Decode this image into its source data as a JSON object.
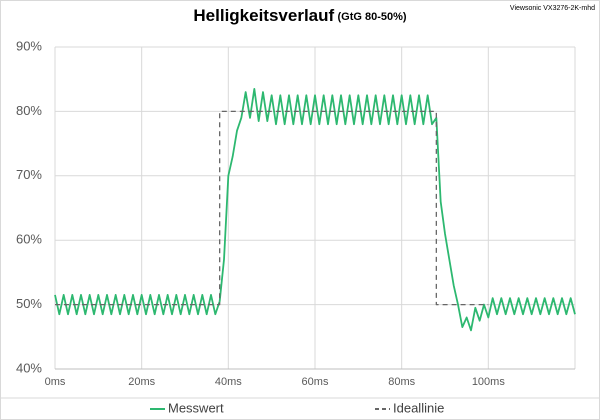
{
  "chart_data": {
    "type": "line",
    "title": "Helligkeitsverlauf",
    "subtitle": "(GtG 80-50%)",
    "annotation": "Viewsonic VX3276-2K-mhd",
    "xlim": [
      0,
      120
    ],
    "ylim": [
      40,
      90
    ],
    "xticks": [
      {
        "value": 0,
        "label": "0ms"
      },
      {
        "value": 20,
        "label": "20ms"
      },
      {
        "value": 40,
        "label": "40ms"
      },
      {
        "value": 60,
        "label": "60ms"
      },
      {
        "value": 80,
        "label": "80ms"
      },
      {
        "value": 100,
        "label": "100ms"
      }
    ],
    "yticks": [
      {
        "value": 40,
        "label": "40%"
      },
      {
        "value": 50,
        "label": "50%"
      },
      {
        "value": 60,
        "label": "60%"
      },
      {
        "value": 70,
        "label": "70%"
      },
      {
        "value": 80,
        "label": "80%"
      },
      {
        "value": 90,
        "label": "90%"
      }
    ],
    "grid": true,
    "legend": "bottom",
    "series": [
      {
        "name": "Messwert",
        "color": "#2db870",
        "style": "solid",
        "x": [
          0,
          1,
          2,
          3,
          4,
          5,
          6,
          7,
          8,
          9,
          10,
          11,
          12,
          13,
          14,
          15,
          16,
          17,
          18,
          19,
          20,
          21,
          22,
          23,
          24,
          25,
          26,
          27,
          28,
          29,
          30,
          31,
          32,
          33,
          34,
          35,
          36,
          37,
          38,
          39,
          40,
          41,
          42,
          43,
          44,
          45,
          46,
          47,
          48,
          49,
          50,
          51,
          52,
          53,
          54,
          55,
          56,
          57,
          58,
          59,
          60,
          61,
          62,
          63,
          64,
          65,
          66,
          67,
          68,
          69,
          70,
          71,
          72,
          73,
          74,
          75,
          76,
          77,
          78,
          79,
          80,
          81,
          82,
          83,
          84,
          85,
          86,
          87,
          88,
          89,
          90,
          91,
          92,
          93,
          94,
          95,
          96,
          97,
          98,
          99,
          100,
          101,
          102,
          103,
          104,
          105,
          106,
          107,
          108,
          109,
          110,
          111,
          112,
          113,
          114,
          115,
          116,
          117,
          118,
          119,
          120
        ],
        "values": [
          51.5,
          48.5,
          51.5,
          48.5,
          51.5,
          48.5,
          51.5,
          48.5,
          51.5,
          48.5,
          51.5,
          48.5,
          51.5,
          48.5,
          51.5,
          48.5,
          51.5,
          48.5,
          51.5,
          48.5,
          51.5,
          48.5,
          51.5,
          48.5,
          51.5,
          48.5,
          51.5,
          48.5,
          51.5,
          48.5,
          51.5,
          48.5,
          51.5,
          48.5,
          51.5,
          48.5,
          51.5,
          48.5,
          50.5,
          57,
          70,
          73,
          77,
          79,
          83,
          79,
          83.5,
          78.5,
          83,
          78.5,
          82.5,
          78,
          82.5,
          78,
          82.5,
          78,
          82.5,
          78,
          82.5,
          78,
          82.5,
          78,
          82.5,
          78,
          82.5,
          78,
          82.5,
          78,
          82.5,
          78,
          82.5,
          78,
          82.5,
          78,
          82.5,
          78,
          82.5,
          78,
          82.5,
          78,
          82.5,
          78,
          82.5,
          78,
          82.5,
          78,
          82.5,
          78,
          79,
          66,
          61,
          57,
          53,
          50,
          46.5,
          48,
          46,
          49.5,
          47.5,
          50,
          48,
          51,
          48.5,
          51,
          48.5,
          51,
          48.5,
          51,
          48.5,
          51,
          48.5,
          51,
          48.5,
          51,
          48.5,
          51,
          48.5,
          51,
          48.5,
          51,
          48.5
        ]
      },
      {
        "name": "Ideallinie",
        "color": "#666666",
        "style": "dashed",
        "x": [
          0,
          38,
          38,
          88,
          88,
          100
        ],
        "values": [
          50,
          50,
          80,
          80,
          50,
          50
        ]
      }
    ]
  }
}
